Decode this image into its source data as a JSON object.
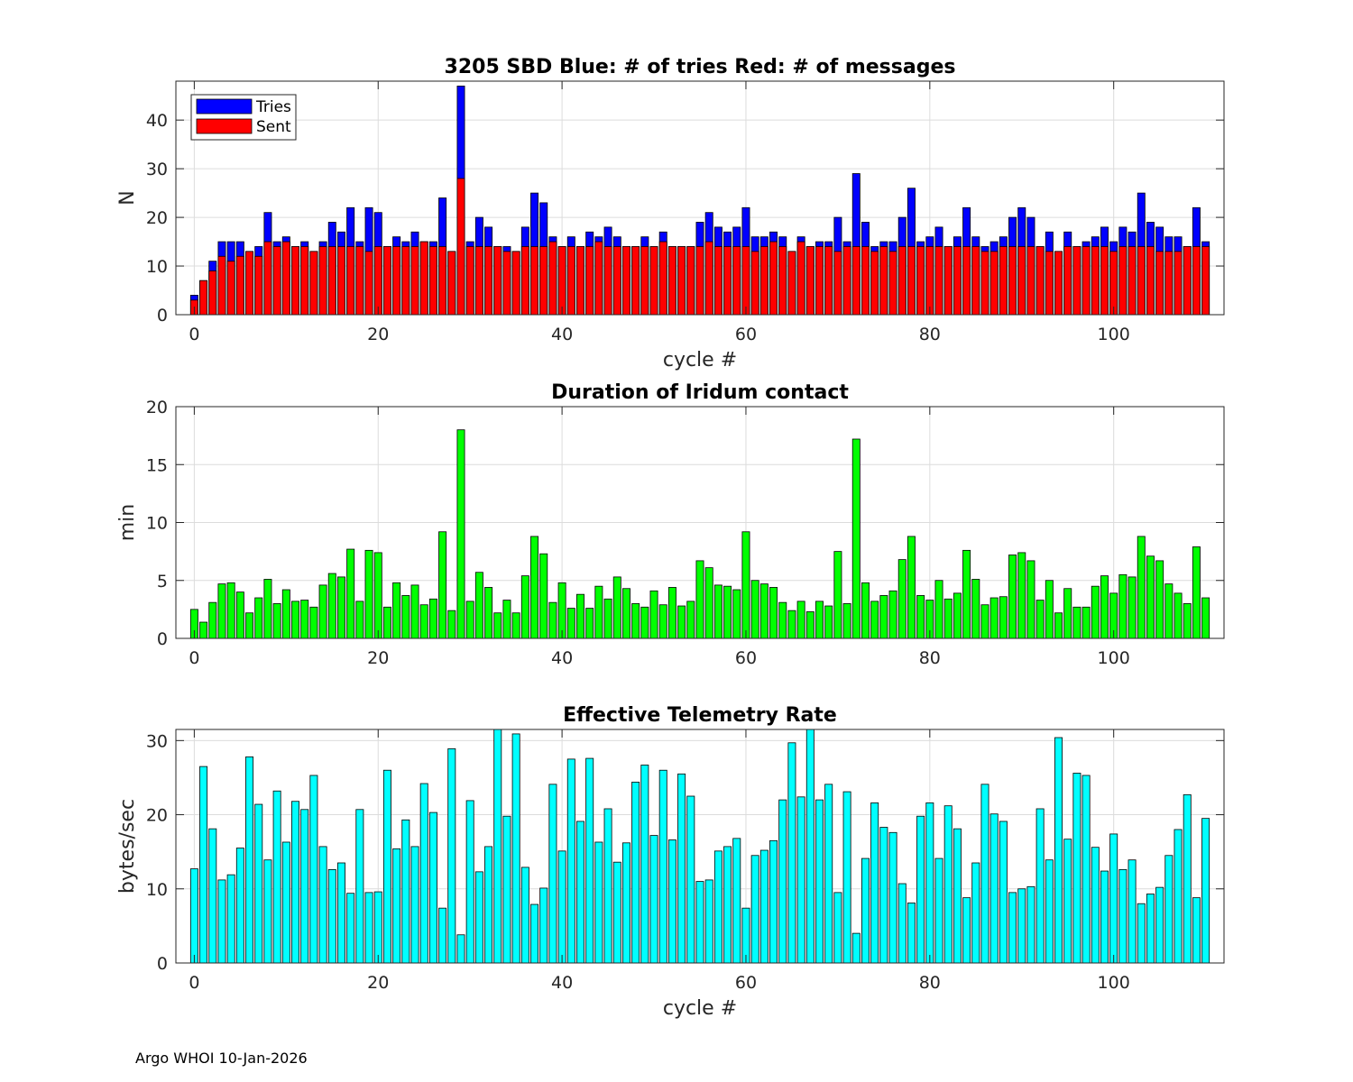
{
  "footer": "Argo WHOI 10-Jan-2026",
  "chart_data": [
    {
      "type": "bar",
      "title": "3205 SBD  Blue: # of tries   Red: # of messages",
      "xlabel": "cycle #",
      "ylabel": "N",
      "xlim": [
        -2,
        112
      ],
      "ylim": [
        0,
        48
      ],
      "xticks": [
        0,
        20,
        40,
        60,
        80,
        100
      ],
      "yticks": [
        0,
        10,
        20,
        30,
        40
      ],
      "grid": true,
      "legend_position": "top-left",
      "x": [
        0,
        1,
        2,
        3,
        4,
        5,
        6,
        7,
        8,
        9,
        10,
        11,
        12,
        13,
        14,
        15,
        16,
        17,
        18,
        19,
        20,
        21,
        22,
        23,
        24,
        25,
        26,
        27,
        28,
        29,
        30,
        31,
        32,
        33,
        34,
        35,
        36,
        37,
        38,
        39,
        40,
        41,
        42,
        43,
        44,
        45,
        46,
        47,
        48,
        49,
        50,
        51,
        52,
        53,
        54,
        55,
        56,
        57,
        58,
        59,
        60,
        61,
        62,
        63,
        64,
        65,
        66,
        67,
        68,
        69,
        70,
        71,
        72,
        73,
        74,
        75,
        76,
        77,
        78,
        79,
        80,
        81,
        82,
        83,
        84,
        85,
        86,
        87,
        88,
        89,
        90,
        91,
        92,
        93,
        94,
        95,
        96,
        97,
        98,
        99,
        100,
        101,
        102,
        103,
        104,
        105,
        106,
        107,
        108,
        109,
        110
      ],
      "series": [
        {
          "name": "Tries",
          "color": "#0000ff",
          "values": [
            4,
            7,
            11,
            15,
            15,
            15,
            13,
            14,
            21,
            15,
            16,
            14,
            15,
            13,
            15,
            19,
            17,
            22,
            15,
            22,
            21,
            14,
            16,
            15,
            17,
            15,
            15,
            24,
            13,
            47,
            15,
            20,
            18,
            14,
            14,
            13,
            18,
            25,
            23,
            16,
            14,
            16,
            14,
            17,
            16,
            18,
            16,
            14,
            14,
            16,
            14,
            17,
            14,
            14,
            14,
            19,
            21,
            18,
            17,
            18,
            22,
            16,
            16,
            17,
            16,
            13,
            16,
            14,
            15,
            15,
            20,
            15,
            29,
            19,
            14,
            15,
            15,
            20,
            26,
            15,
            16,
            18,
            14,
            16,
            22,
            16,
            14,
            15,
            16,
            20,
            22,
            20,
            14,
            17,
            13,
            17,
            14,
            15,
            16,
            18,
            15,
            18,
            17,
            25,
            19,
            18,
            16,
            16,
            14,
            22,
            15
          ]
        },
        {
          "name": "Sent",
          "color": "#ff0000",
          "values": [
            3,
            7,
            9,
            12,
            11,
            12,
            13,
            12,
            15,
            14,
            15,
            14,
            14,
            13,
            14,
            14,
            14,
            14,
            14,
            13,
            14,
            14,
            14,
            14,
            14,
            15,
            14,
            14,
            13,
            28,
            14,
            14,
            14,
            14,
            13,
            13,
            14,
            14,
            14,
            15,
            14,
            14,
            14,
            14,
            15,
            14,
            14,
            14,
            14,
            14,
            14,
            15,
            14,
            14,
            14,
            14,
            15,
            14,
            14,
            14,
            14,
            13,
            14,
            15,
            14,
            13,
            15,
            14,
            14,
            14,
            13,
            14,
            14,
            14,
            13,
            14,
            13,
            14,
            14,
            14,
            14,
            14,
            14,
            14,
            14,
            14,
            13,
            13,
            14,
            14,
            14,
            14,
            14,
            13,
            13,
            14,
            14,
            14,
            14,
            14,
            13,
            14,
            14,
            14,
            14,
            13,
            13,
            13,
            14,
            14,
            14
          ]
        }
      ]
    },
    {
      "type": "bar",
      "title": "Duration of Iridum contact",
      "xlabel": "",
      "ylabel": "min",
      "xlim": [
        -2,
        112
      ],
      "ylim": [
        0,
        20
      ],
      "xticks": [
        0,
        20,
        40,
        60,
        80,
        100
      ],
      "yticks": [
        0,
        5,
        10,
        15,
        20
      ],
      "grid": true,
      "x": [
        0,
        1,
        2,
        3,
        4,
        5,
        6,
        7,
        8,
        9,
        10,
        11,
        12,
        13,
        14,
        15,
        16,
        17,
        18,
        19,
        20,
        21,
        22,
        23,
        24,
        25,
        26,
        27,
        28,
        29,
        30,
        31,
        32,
        33,
        34,
        35,
        36,
        37,
        38,
        39,
        40,
        41,
        42,
        43,
        44,
        45,
        46,
        47,
        48,
        49,
        50,
        51,
        52,
        53,
        54,
        55,
        56,
        57,
        58,
        59,
        60,
        61,
        62,
        63,
        64,
        65,
        66,
        67,
        68,
        69,
        70,
        71,
        72,
        73,
        74,
        75,
        76,
        77,
        78,
        79,
        80,
        81,
        82,
        83,
        84,
        85,
        86,
        87,
        88,
        89,
        90,
        91,
        92,
        93,
        94,
        95,
        96,
        97,
        98,
        99,
        100,
        101,
        102,
        103,
        104,
        105,
        106,
        107,
        108,
        109,
        110
      ],
      "series": [
        {
          "color": "#00ff00",
          "values": [
            2.5,
            1.4,
            3.1,
            4.7,
            4.8,
            4.0,
            2.2,
            3.5,
            5.1,
            3.0,
            4.2,
            3.2,
            3.3,
            2.7,
            4.6,
            5.6,
            5.3,
            7.7,
            3.2,
            7.6,
            7.4,
            2.7,
            4.8,
            3.7,
            4.6,
            2.9,
            3.4,
            9.2,
            2.4,
            18.0,
            3.2,
            5.7,
            4.4,
            2.2,
            3.3,
            2.2,
            5.4,
            8.8,
            7.3,
            3.1,
            4.8,
            2.6,
            3.8,
            2.6,
            4.5,
            3.4,
            5.3,
            4.3,
            3.0,
            2.7,
            4.1,
            2.9,
            4.4,
            2.8,
            3.2,
            6.7,
            6.1,
            4.6,
            4.5,
            4.2,
            9.2,
            5.0,
            4.7,
            4.4,
            3.1,
            2.4,
            3.2,
            2.3,
            3.2,
            2.8,
            7.5,
            3.0,
            17.2,
            4.8,
            3.2,
            3.7,
            4.1,
            6.8,
            8.8,
            3.7,
            3.3,
            5.0,
            3.4,
            3.9,
            7.6,
            5.1,
            2.9,
            3.5,
            3.6,
            7.2,
            7.4,
            6.7,
            3.3,
            5.0,
            2.2,
            4.3,
            2.7,
            2.7,
            4.5,
            5.4,
            3.9,
            5.5,
            5.3,
            8.8,
            7.1,
            6.7,
            4.7,
            3.9,
            3.0,
            7.9,
            3.5
          ]
        }
      ]
    },
    {
      "type": "bar",
      "title": "Effective Telemetry Rate",
      "xlabel": "cycle #",
      "ylabel": "bytes/sec",
      "xlim": [
        -2,
        112
      ],
      "ylim": [
        0,
        31.5
      ],
      "xticks": [
        0,
        20,
        40,
        60,
        80,
        100
      ],
      "yticks": [
        0,
        10,
        20,
        30
      ],
      "grid": true,
      "x": [
        0,
        1,
        2,
        3,
        4,
        5,
        6,
        7,
        8,
        9,
        10,
        11,
        12,
        13,
        14,
        15,
        16,
        17,
        18,
        19,
        20,
        21,
        22,
        23,
        24,
        25,
        26,
        27,
        28,
        29,
        30,
        31,
        32,
        33,
        34,
        35,
        36,
        37,
        38,
        39,
        40,
        41,
        42,
        43,
        44,
        45,
        46,
        47,
        48,
        49,
        50,
        51,
        52,
        53,
        54,
        55,
        56,
        57,
        58,
        59,
        60,
        61,
        62,
        63,
        64,
        65,
        66,
        67,
        68,
        69,
        70,
        71,
        72,
        73,
        74,
        75,
        76,
        77,
        78,
        79,
        80,
        81,
        82,
        83,
        84,
        85,
        86,
        87,
        88,
        89,
        90,
        91,
        92,
        93,
        94,
        95,
        96,
        97,
        98,
        99,
        100,
        101,
        102,
        103,
        104,
        105,
        106,
        107,
        108,
        109,
        110
      ],
      "series": [
        {
          "color": "#00ffff",
          "values": [
            12.7,
            26.5,
            18.1,
            11.2,
            11.9,
            15.5,
            27.8,
            21.4,
            13.9,
            23.2,
            16.3,
            21.8,
            20.7,
            25.3,
            15.7,
            12.6,
            13.5,
            9.4,
            20.7,
            9.5,
            9.6,
            26.0,
            15.4,
            19.3,
            15.7,
            24.2,
            20.3,
            7.4,
            28.9,
            3.8,
            21.9,
            12.3,
            15.7,
            31.6,
            19.8,
            30.9,
            12.9,
            7.9,
            10.1,
            24.1,
            15.1,
            27.5,
            19.1,
            27.6,
            16.3,
            20.8,
            13.6,
            16.2,
            24.4,
            26.7,
            17.2,
            26.0,
            16.6,
            25.5,
            22.5,
            11.0,
            11.2,
            15.1,
            15.7,
            16.8,
            7.4,
            14.5,
            15.2,
            16.5,
            22.0,
            29.7,
            22.4,
            31.6,
            22.0,
            24.1,
            9.5,
            23.1,
            4.0,
            14.1,
            21.6,
            18.3,
            17.6,
            10.7,
            8.1,
            19.8,
            21.6,
            14.1,
            21.2,
            18.1,
            8.8,
            13.5,
            24.1,
            20.1,
            19.1,
            9.5,
            10.0,
            10.3,
            20.8,
            13.9,
            30.4,
            16.7,
            25.6,
            25.3,
            15.6,
            12.4,
            17.4,
            12.6,
            13.9,
            8.0,
            9.3,
            10.2,
            14.5,
            18.0,
            22.7,
            8.8,
            19.5
          ]
        }
      ]
    }
  ]
}
